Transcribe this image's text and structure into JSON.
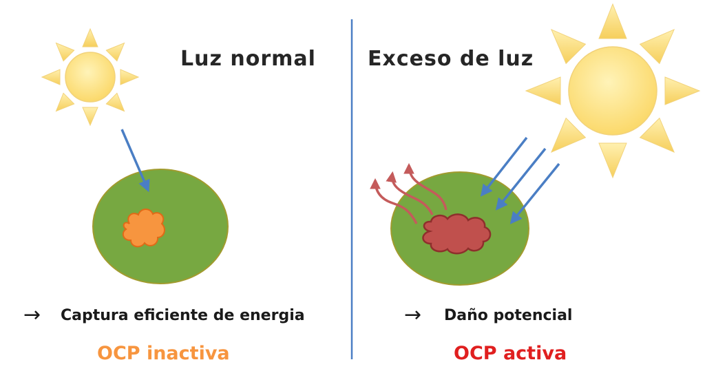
{
  "left_panel": {
    "heading": "Luz normal",
    "arrow_symbol": "→",
    "caption": "Captura eficiente de energia",
    "state": "OCP inactiva"
  },
  "right_panel": {
    "heading": "Exceso de luz",
    "arrow_symbol": "→",
    "caption": "Daño potencial",
    "state": "OCP activa"
  },
  "colors": {
    "sun_fill": "#fde38a",
    "sun_stroke": "#f2d27a",
    "cell_fill": "#77a841",
    "cell_stroke": "#a19b2e",
    "light_arrow": "#4a7ec4",
    "heat_arrow": "#c45b5b",
    "ocp_inactive": "#f7953f",
    "ocp_inactive_stroke": "#e06a17",
    "ocp_active": "#c0504d",
    "ocp_active_stroke": "#8e2f2c",
    "divider": "#4a7ec4",
    "heading_text": "#262626",
    "caption_text": "#1a1a1a",
    "state_inactive_text": "#f7953f",
    "state_active_text": "#e01f1f"
  }
}
